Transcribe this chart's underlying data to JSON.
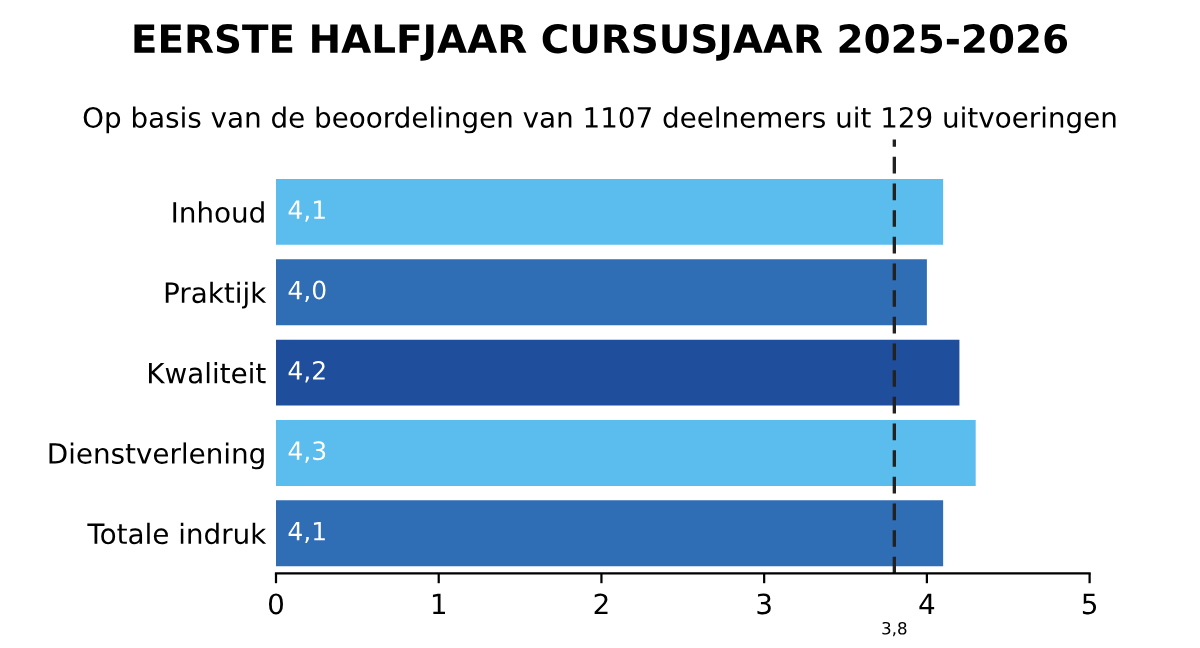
{
  "chart_data": {
    "type": "bar",
    "orientation": "horizontal",
    "title": "EERSTE HALFJAAR CURSUSJAAR 2025-2026",
    "subtitle": "Op basis van de beoordelingen van 1107 deelnemers uit 129 uitvoeringen",
    "categories": [
      "Inhoud",
      "Praktijk",
      "Kwaliteit",
      "Dienstverlening",
      "Totale indruk"
    ],
    "values": [
      4.1,
      4.0,
      4.2,
      4.3,
      4.1
    ],
    "value_labels": [
      "4,1",
      "4,0",
      "4,2",
      "4,3",
      "4,1"
    ],
    "colors": [
      "#5bbcee",
      "#2f6db5",
      "#1f4e9c",
      "#5bbcee",
      "#2f6db5"
    ],
    "xlim": [
      0,
      5
    ],
    "xticks": [
      0,
      1,
      2,
      3,
      4,
      5
    ],
    "ref_lines": [
      {
        "axis": "x",
        "value": 3.8,
        "label": "3,8",
        "line_style": "dashed",
        "color": "#222222"
      }
    ],
    "grid": false,
    "legend": false
  }
}
